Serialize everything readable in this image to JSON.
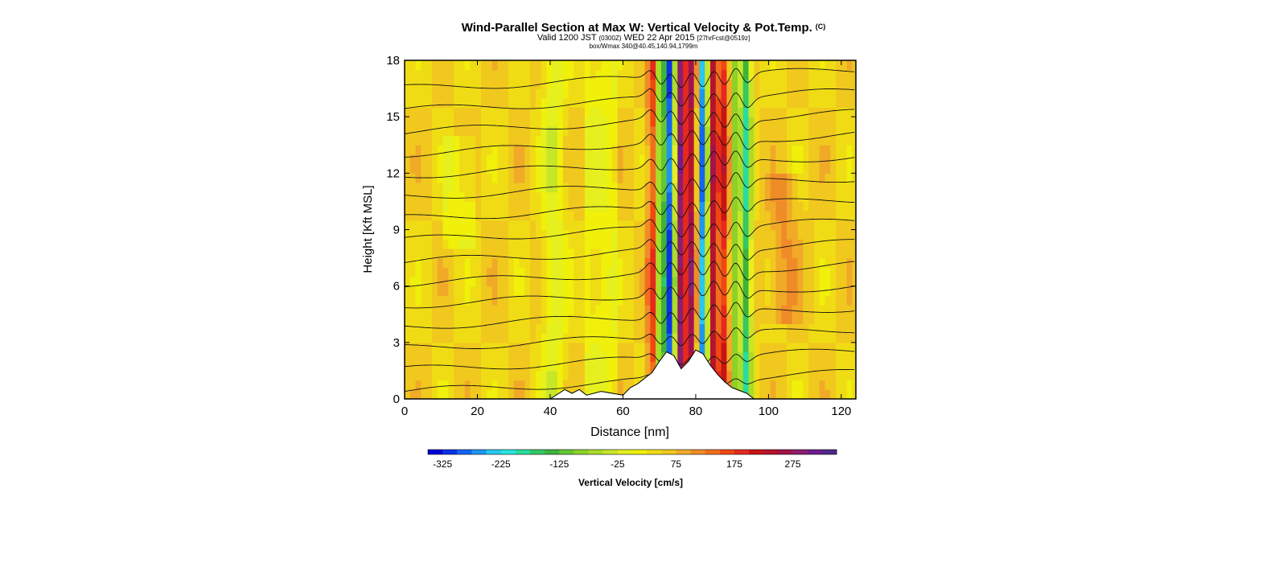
{
  "header": {
    "title": "Wind-Parallel Section at Max W: Vertical Velocity & Pot.Temp.",
    "copyright": "(C)",
    "subtitle_main": "Valid 1200 JST",
    "subtitle_utc": "(0300Z)",
    "subtitle_date": "WED 22 Apr 2015",
    "subtitle_forecast": "[27hrFcst@0519z]",
    "info": "box/Wmax 340@40.45,140.94,1799m"
  },
  "chart_data": {
    "type": "heatmap",
    "title": "Wind-Parallel Section at Max W: Vertical Velocity & Pot.Temp.",
    "xlabel": "Distance [nm]",
    "ylabel": "Height [Kft MSL]",
    "xlim": [
      0,
      124
    ],
    "ylim": [
      0,
      18
    ],
    "x_ticks": [
      0,
      20,
      40,
      60,
      80,
      100,
      120
    ],
    "y_ticks": [
      0,
      3,
      6,
      9,
      12,
      15,
      18
    ],
    "colorbar": {
      "label": "Vertical Velocity [cm/s]",
      "tick_labels": [
        "-325",
        "-225",
        "-125",
        "-25",
        "75",
        "175",
        "275"
      ],
      "tick_values": [
        -325,
        -225,
        -125,
        -25,
        75,
        175,
        275
      ],
      "bin_edges": [
        -350,
        -325,
        -300,
        -275,
        -250,
        -225,
        -200,
        -175,
        -150,
        -125,
        -100,
        -75,
        -50,
        -25,
        0,
        25,
        50,
        75,
        100,
        125,
        150,
        175,
        200,
        225,
        250,
        275,
        300,
        325,
        350
      ],
      "colors": [
        "#0000d8",
        "#0a32e6",
        "#1464f0",
        "#1e96f0",
        "#28c8f0",
        "#28e6dc",
        "#28dca0",
        "#32c864",
        "#3cb43c",
        "#64c832",
        "#8cd228",
        "#aadc28",
        "#c8e628",
        "#e6f01e",
        "#f0f00a",
        "#f0dc14",
        "#f0c81e",
        "#f0aa28",
        "#f08c28",
        "#f06e1e",
        "#f04614",
        "#e6281e",
        "#c81414",
        "#b4142d",
        "#a0144b",
        "#8c1e6e",
        "#6e1e8c",
        "#50288c"
      ]
    },
    "terrain": [
      [
        0,
        0
      ],
      [
        40,
        0
      ],
      [
        44,
        0.5
      ],
      [
        46,
        0.3
      ],
      [
        48,
        0.5
      ],
      [
        50,
        0.2
      ],
      [
        54,
        0.4
      ],
      [
        60,
        0.2
      ],
      [
        62,
        0.6
      ],
      [
        64,
        0.8
      ],
      [
        68,
        1.4
      ],
      [
        70,
        2.0
      ],
      [
        72,
        2.5
      ],
      [
        74,
        2.3
      ],
      [
        76,
        1.6
      ],
      [
        78,
        2.0
      ],
      [
        80,
        2.6
      ],
      [
        82,
        2.4
      ],
      [
        84,
        1.8
      ],
      [
        86,
        1.3
      ],
      [
        88,
        0.9
      ],
      [
        90,
        0.6
      ],
      [
        94,
        0.3
      ],
      [
        96,
        0
      ],
      [
        124,
        0
      ]
    ],
    "velocity_bands": [
      {
        "x": 68,
        "value": 175
      },
      {
        "x": 70.5,
        "value": -125
      },
      {
        "x": 73,
        "value": -300
      },
      {
        "x": 76,
        "value": 300
      },
      {
        "x": 79,
        "value": 260
      },
      {
        "x": 82,
        "value": -275
      },
      {
        "x": 85,
        "value": 250
      },
      {
        "x": 88,
        "value": 200
      },
      {
        "x": 91,
        "value": -100
      },
      {
        "x": 94,
        "value": -175
      }
    ],
    "theta_contour_levels": 15
  }
}
